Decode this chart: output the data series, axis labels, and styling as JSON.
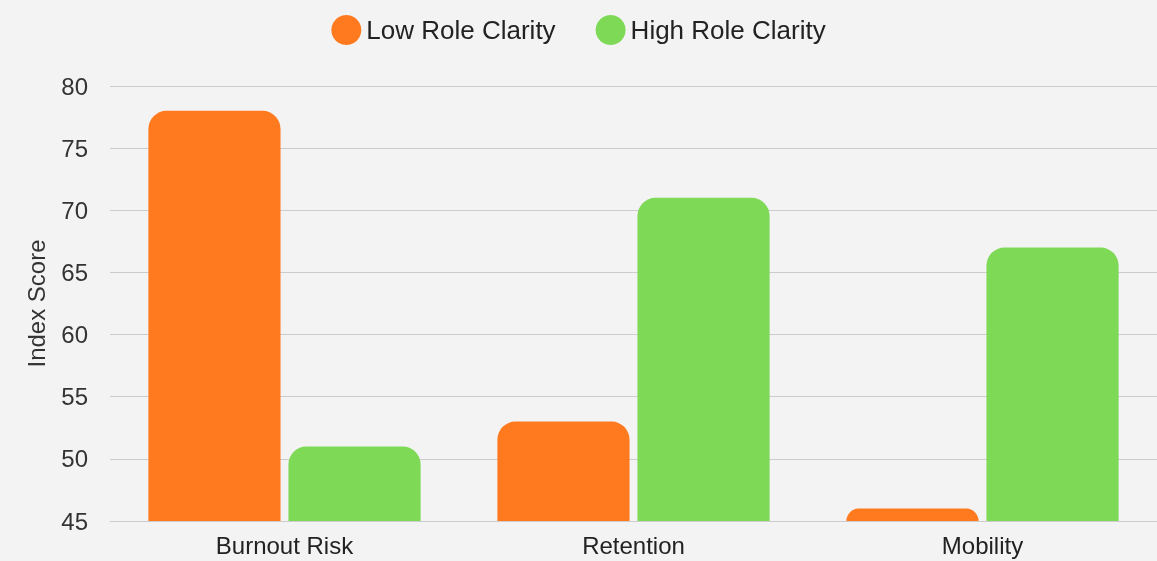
{
  "chart_data": {
    "type": "bar",
    "ylabel": "Index Score",
    "categories": [
      "Burnout Risk",
      "Retention",
      "Mobility"
    ],
    "series": [
      {
        "name": "Low Role Clarity",
        "color": "#ff7a1f",
        "values": [
          78,
          53,
          46
        ]
      },
      {
        "name": "High Role Clarity",
        "color": "#7ed957",
        "values": [
          51,
          71,
          67
        ]
      }
    ],
    "ylim": [
      45,
      80
    ],
    "yticks": [
      45,
      50,
      55,
      60,
      65,
      70,
      75,
      80
    ],
    "grid": "y",
    "legend": "top"
  }
}
